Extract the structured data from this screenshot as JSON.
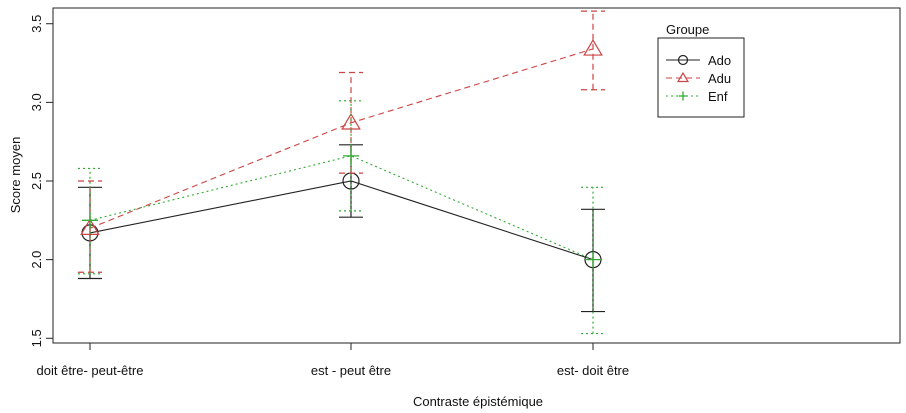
{
  "chart_data": {
    "type": "line",
    "xlabel": "Contraste épistémique",
    "ylabel": "Score moyen",
    "categories": [
      "doit être- peut-être",
      "est - peut être",
      "est- doit être"
    ],
    "ylim": [
      1.47,
      3.6
    ],
    "yticks": [
      1.5,
      2.0,
      2.5,
      3.0,
      3.5
    ],
    "ytick_labels": [
      "1.5",
      "2.0",
      "2.5",
      "3.0",
      "3.5"
    ],
    "grid": false,
    "legend_title": "Groupe",
    "legend_position": "top-right",
    "series": [
      {
        "name": "Ado",
        "color": "#222222",
        "line_style": "solid",
        "marker": "circle",
        "values": [
          2.17,
          2.5,
          2.0
        ],
        "err_low": [
          1.88,
          2.27,
          1.67
        ],
        "err_high": [
          2.46,
          2.73,
          2.32
        ]
      },
      {
        "name": "Adu",
        "color": "#cc4444",
        "line_style": "dashed",
        "marker": "triangle",
        "values": [
          2.2,
          2.87,
          3.34
        ],
        "err_low": [
          1.92,
          2.55,
          3.08
        ],
        "err_high": [
          2.5,
          3.19,
          3.58
        ]
      },
      {
        "name": "Enf",
        "color": "#33aa33",
        "line_style": "dotted",
        "marker": "plus",
        "values": [
          2.25,
          2.66,
          2.0
        ],
        "err_low": [
          1.91,
          2.31,
          1.53
        ],
        "err_high": [
          2.58,
          3.01,
          2.46
        ]
      }
    ]
  }
}
